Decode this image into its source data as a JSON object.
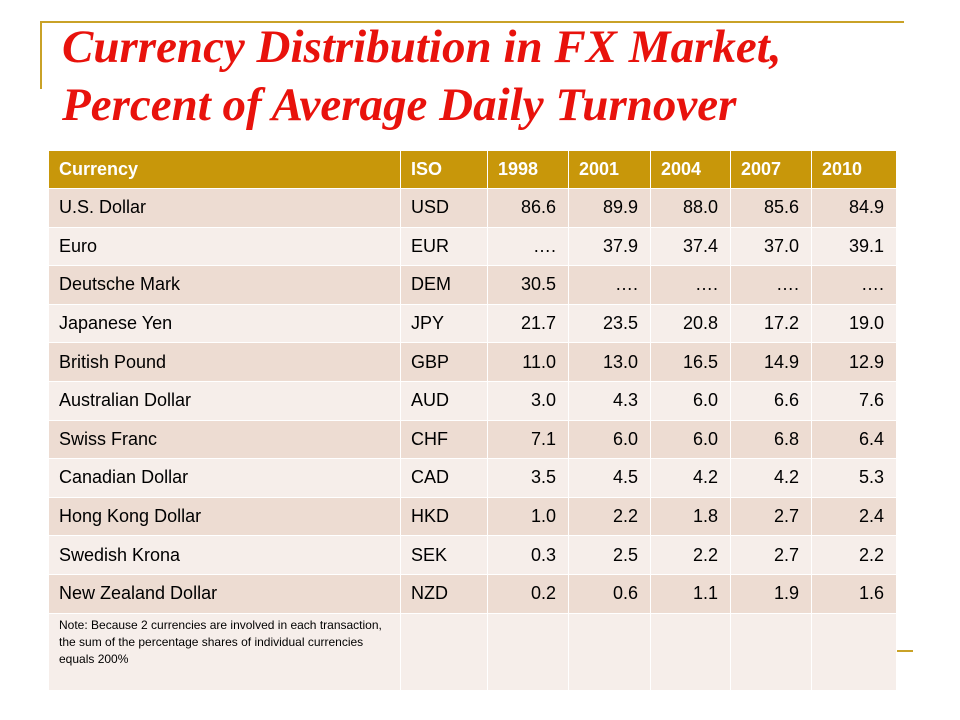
{
  "title": {
    "line1": "Currency Distribution in FX Market,",
    "line2": "Percent of Average Daily Turnover"
  },
  "colors": {
    "title": "#e8120c",
    "header_bg": "#c8970a",
    "row_dark": "#eddcd2",
    "row_light": "#f6eeea",
    "accent_line": "#c9a227"
  },
  "chart_data": {
    "type": "table",
    "columns": [
      "Currency",
      "ISO",
      "1998",
      "2001",
      "2004",
      "2007",
      "2010"
    ],
    "rows": [
      [
        "U.S. Dollar",
        "USD",
        "86.6",
        "89.9",
        "88.0",
        "85.6",
        "84.9"
      ],
      [
        "Euro",
        "EUR",
        "….",
        "37.9",
        "37.4",
        "37.0",
        "39.1"
      ],
      [
        "Deutsche Mark",
        "DEM",
        "30.5",
        "….",
        "….",
        "….",
        "…."
      ],
      [
        "Japanese Yen",
        "JPY",
        "21.7",
        "23.5",
        "20.8",
        "17.2",
        "19.0"
      ],
      [
        "British Pound",
        "GBP",
        "11.0",
        "13.0",
        "16.5",
        "14.9",
        "12.9"
      ],
      [
        "Australian Dollar",
        "AUD",
        "3.0",
        "4.3",
        "6.0",
        "6.6",
        "7.6"
      ],
      [
        "Swiss Franc",
        "CHF",
        "7.1",
        "6.0",
        "6.0",
        "6.8",
        "6.4"
      ],
      [
        "Canadian Dollar",
        "CAD",
        "3.5",
        "4.5",
        "4.2",
        "4.2",
        "5.3"
      ],
      [
        "Hong Kong Dollar",
        "HKD",
        "1.0",
        "2.2",
        "1.8",
        "2.7",
        "2.4"
      ],
      [
        "Swedish Krona",
        "SEK",
        "0.3",
        "2.5",
        "2.2",
        "2.7",
        "2.2"
      ],
      [
        "New Zealand Dollar",
        "NZD",
        "0.2",
        "0.6",
        "1.1",
        "1.9",
        "1.6"
      ]
    ],
    "note": "Note:  Because 2 currencies are involved in each transaction, the sum of the percentage shares of individual currencies equals 200%"
  }
}
